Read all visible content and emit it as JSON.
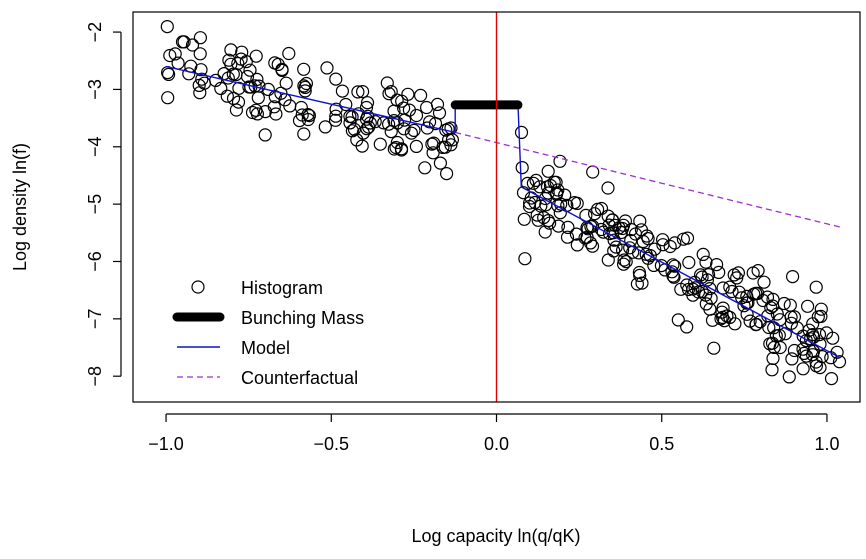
{
  "chart_data": {
    "type": "scatter",
    "xlabel": "Log capacity ln(q/qK)",
    "ylabel": "Log density ln(f)",
    "xlim": [
      -1.1,
      1.1
    ],
    "ylim": [
      -8.45,
      -1.65
    ],
    "x_ticks": [
      -1.0,
      -0.5,
      0.0,
      0.5,
      1.0
    ],
    "x_tick_labels": [
      "−1.0",
      "−0.5",
      "0.0",
      "0.5",
      "1.0"
    ],
    "y_ticks": [
      -8,
      -7,
      -6,
      -5,
      -4,
      -3,
      -2
    ],
    "y_tick_labels": [
      "−8",
      "−7",
      "−6",
      "−5",
      "−4",
      "−3",
      "−2"
    ],
    "grid": false,
    "legend_position": "bottom-left",
    "vertical_line": {
      "x": 0.0,
      "color": "#e00000"
    },
    "series": [
      {
        "name": "Histogram",
        "kind": "points",
        "color": "#000000"
      },
      {
        "name": "Bunching Mass",
        "kind": "segment",
        "color": "#000000",
        "x": [
          -0.125,
          0.065
        ],
        "y": [
          -3.27,
          -3.27
        ]
      },
      {
        "name": "Model",
        "kind": "line",
        "color": "#1010d0",
        "x": [
          -1.0,
          -0.125,
          -0.125,
          0.065,
          0.065,
          0.075,
          1.04
        ],
        "y": [
          -2.6,
          -3.75,
          -3.27,
          -3.27,
          -3.27,
          -4.7,
          -7.68
        ]
      },
      {
        "name": "Counterfactual",
        "kind": "dashed",
        "color": "#9932cc",
        "x": [
          -0.125,
          1.04
        ],
        "y": [
          -3.75,
          -5.4
        ]
      }
    ],
    "points": {
      "segments": [
        {
          "x0": -1.0,
          "x1": -0.13,
          "y0": -2.6,
          "y1": -3.75,
          "n": 150,
          "sd": 0.33
        },
        {
          "x0": 0.075,
          "x1": 1.04,
          "y0": -4.7,
          "y1": -7.68,
          "n": 230,
          "sd": 0.35
        }
      ]
    }
  }
}
